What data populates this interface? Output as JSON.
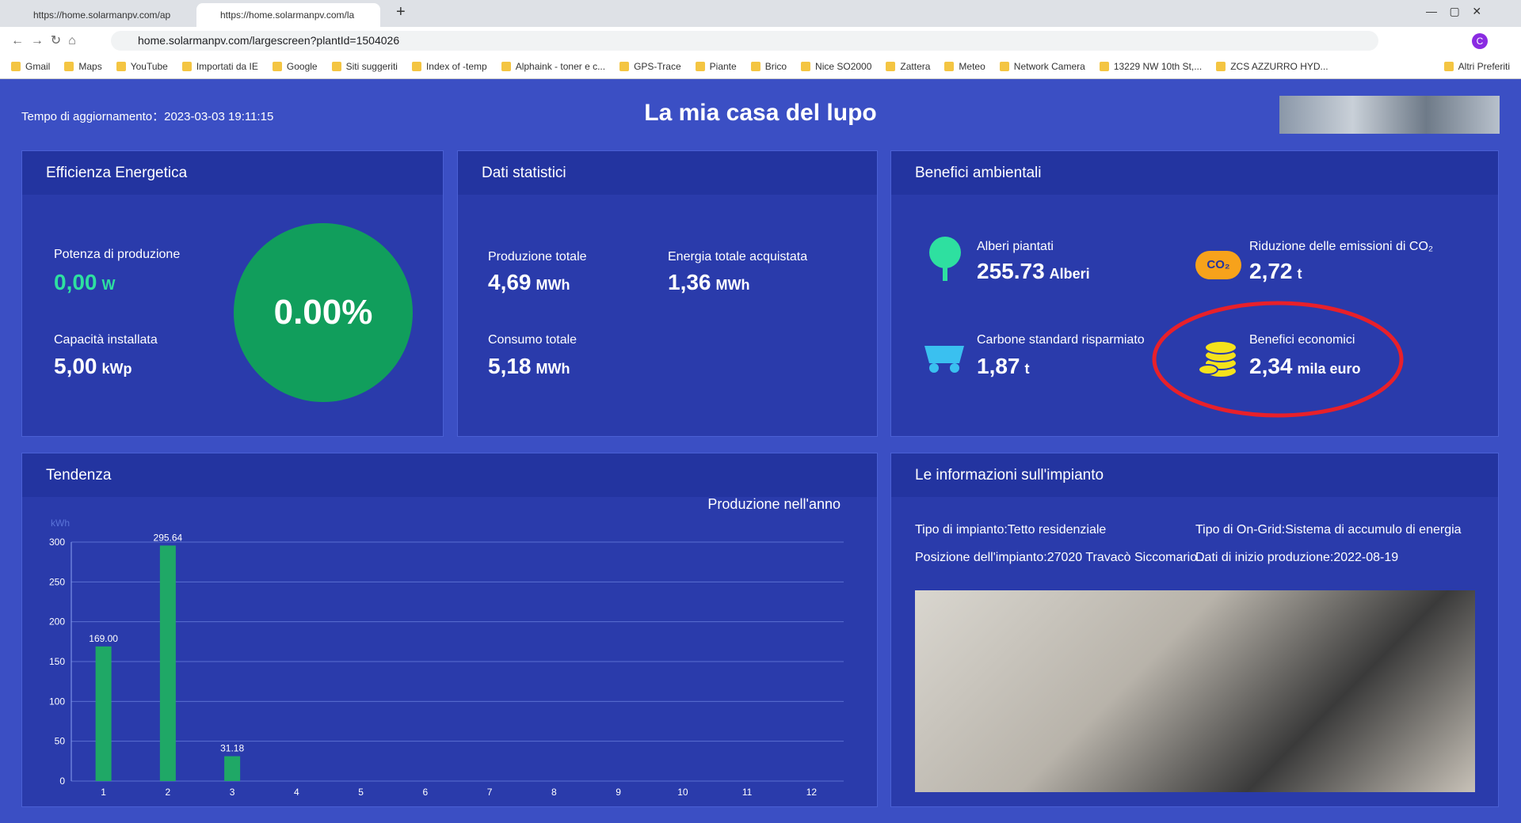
{
  "browser": {
    "tabs": [
      "https://home.solarmanpv.com/ap",
      "https://home.solarmanpv.com/la"
    ],
    "url": "home.solarmanpv.com/largescreen?plantId=1504026",
    "bookmarks": [
      "Gmail",
      "Maps",
      "YouTube",
      "Importati da IE",
      "Google",
      "Siti suggeriti",
      "Index of -temp",
      "Alphaink - toner e c...",
      "GPS-Trace",
      "Piante",
      "Brico",
      "Nice SO2000",
      "Zattera",
      "Meteo",
      "Network Camera",
      "13229 NW 10th St,...",
      "ZCS AZZURRO HYD..."
    ],
    "other_bookmarks": "Altri Preferiti"
  },
  "header": {
    "update_label": "Tempo di aggiornamento：",
    "update_time": "2023-03-03 19:11:15",
    "title": "La mia casa del lupo"
  },
  "efficiency": {
    "title": "Efficienza Energetica",
    "production": {
      "label": "Potenza di produzione",
      "value": "0,00",
      "unit": "W"
    },
    "capacity": {
      "label": "Capacità installata",
      "value": "5,00",
      "unit": "kWp"
    },
    "percent": "0.00%"
  },
  "stats": {
    "title": "Dati statistici",
    "items": [
      {
        "label": "Produzione totale",
        "value": "4,69",
        "unit": "MWh"
      },
      {
        "label": "Energia totale acquistata",
        "value": "1,36",
        "unit": "MWh"
      },
      {
        "label": "Consumo totale",
        "value": "5,18",
        "unit": "MWh"
      }
    ]
  },
  "benefits": {
    "title": "Benefici ambientali",
    "items": [
      {
        "label": "Alberi piantati",
        "value": "255.73",
        "unit": "Alberi"
      },
      {
        "label": "Riduzione delle emissioni di CO₂",
        "value": "2,72",
        "unit": "t",
        "icon": "CO₂"
      },
      {
        "label": "Carbone standard risparmiato",
        "value": "1,87",
        "unit": "t"
      },
      {
        "label": "Benefici economici",
        "value": "2,34",
        "unit": "mila euro"
      }
    ]
  },
  "trend": {
    "title": "Tendenza",
    "chart": {
      "type": "bar",
      "title": "Produzione nell'anno",
      "y_label": "kWh",
      "categories": [
        "1",
        "2",
        "3",
        "4",
        "5",
        "6",
        "7",
        "8",
        "9",
        "10",
        "11",
        "12"
      ],
      "values": [
        169.0,
        295.64,
        31.18,
        null,
        null,
        null,
        null,
        null,
        null,
        null,
        null,
        null
      ],
      "value_labels": [
        "169.00",
        "295.64",
        "31.18",
        null,
        null,
        null,
        null,
        null,
        null,
        null,
        null,
        null
      ],
      "color": "#1fa866",
      "ylim": [
        0,
        300
      ],
      "yticks": [
        0,
        50,
        100,
        150,
        200,
        250,
        300
      ],
      "grid": true
    }
  },
  "info": {
    "title": "Le informazioni sull'impianto",
    "fields": [
      "Tipo di impianto:Tetto residenziale",
      "Tipo di On-Grid:Sistema di accumulo di energia",
      "Posizione dell'impianto:27020 Travacò Siccomario...",
      "Dati di inizio produzione:2022-08-19"
    ]
  }
}
